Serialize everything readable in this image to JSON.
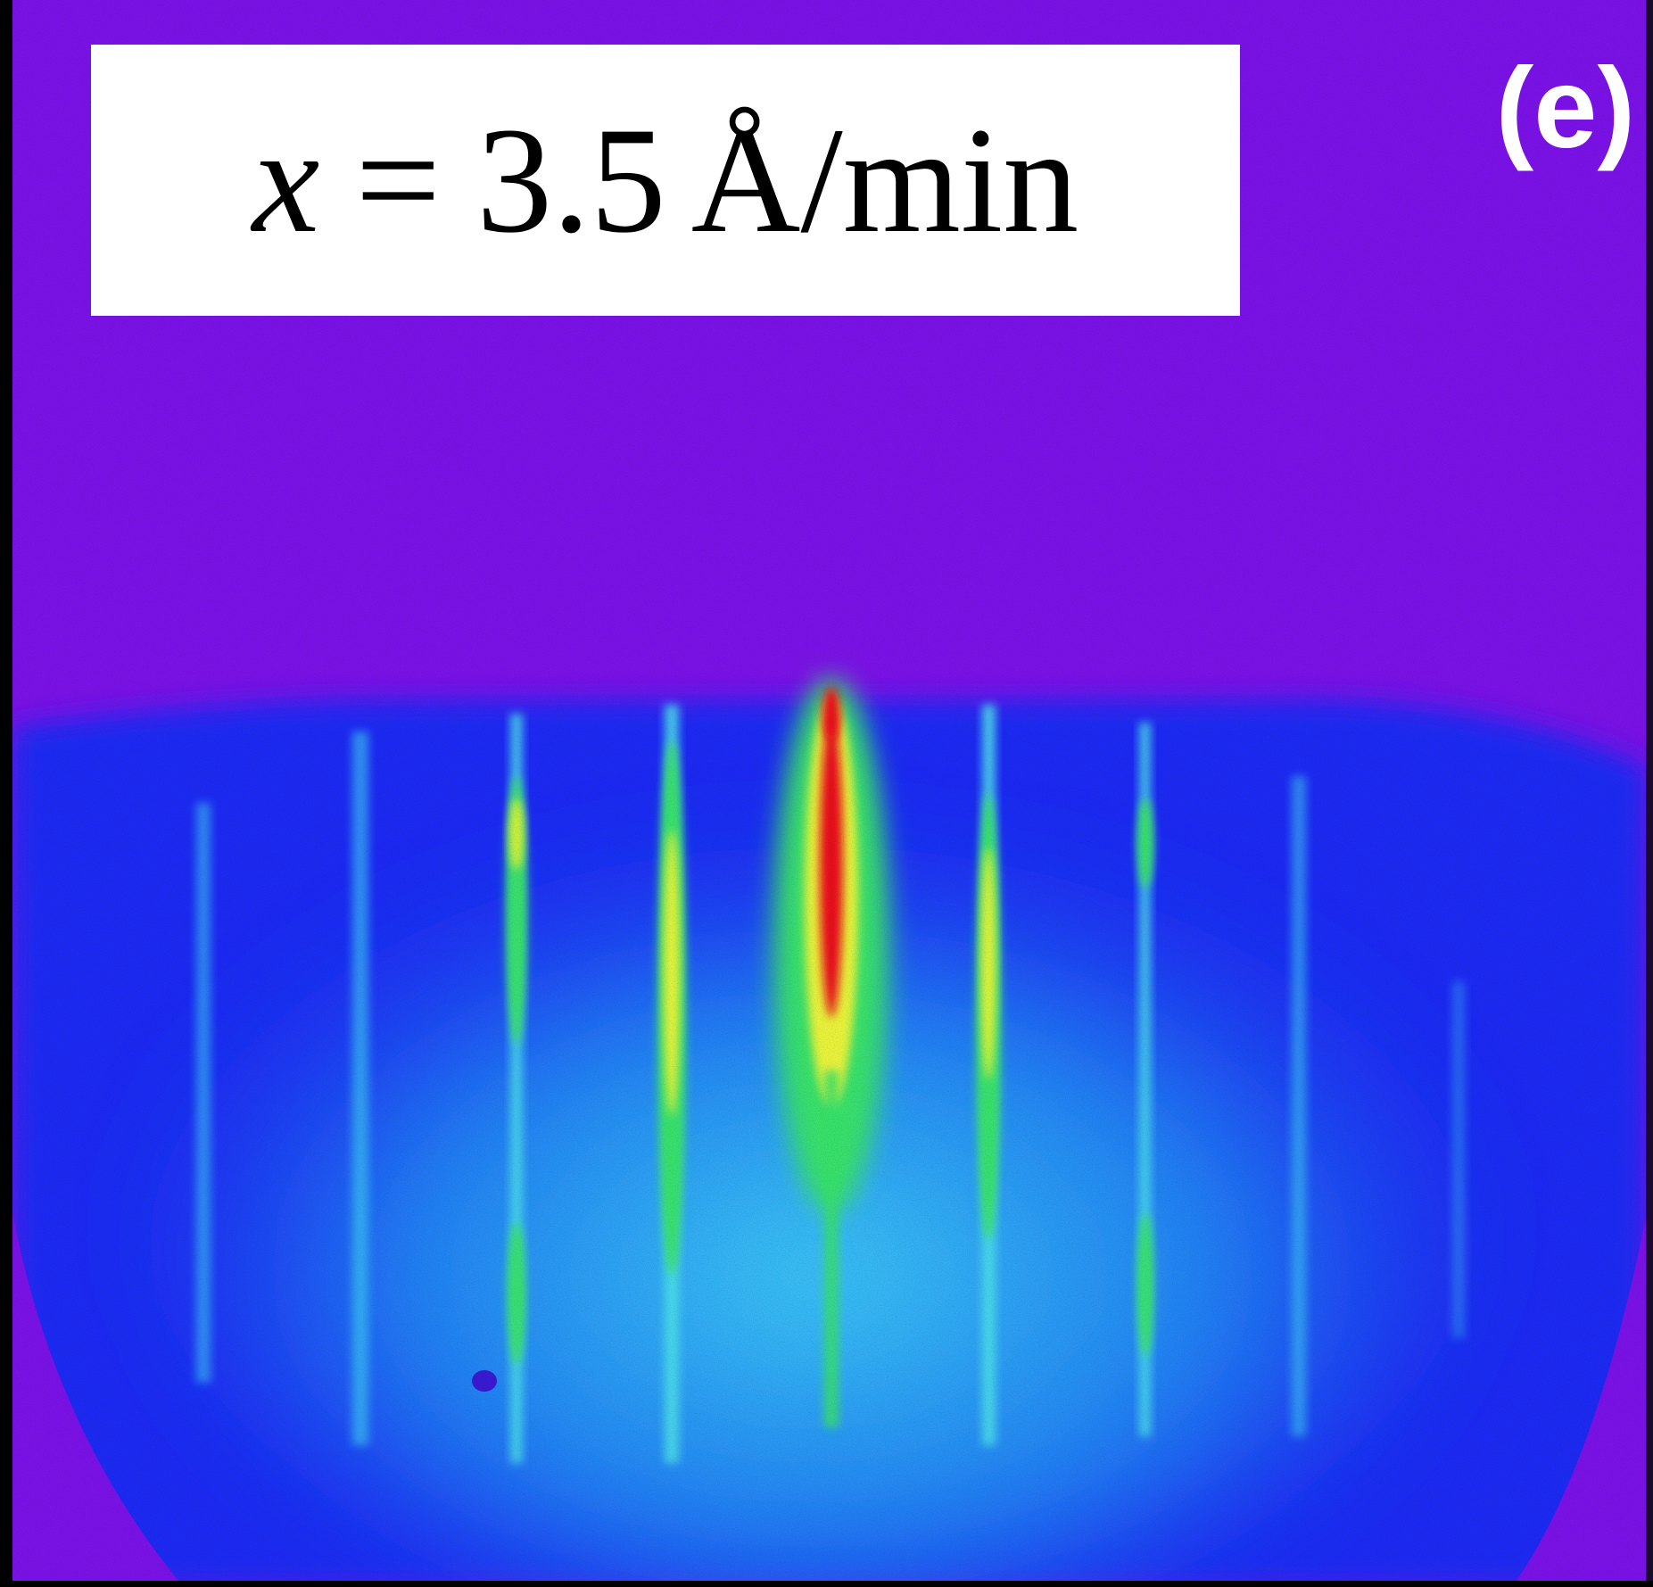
{
  "annotation": {
    "variable": "x",
    "equals": "=",
    "value": "3.5",
    "unit": "Å/min"
  },
  "panel_label": "(e)",
  "colors": {
    "background_violet": "#7a12e6",
    "lower_blue": "#1a2cf2",
    "mid_cyan": "#22b8f0",
    "streak_green": "#38e06a",
    "streak_yellow": "#e8f23a",
    "streak_red": "#e8101e"
  }
}
